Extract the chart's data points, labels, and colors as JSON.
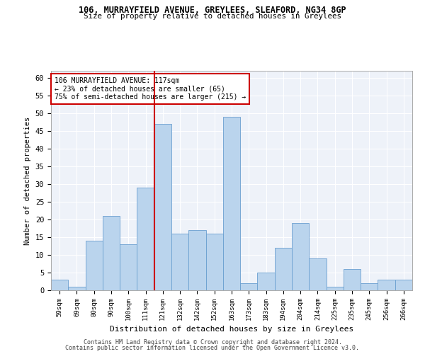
{
  "title1": "106, MURRAYFIELD AVENUE, GREYLEES, SLEAFORD, NG34 8GP",
  "title2": "Size of property relative to detached houses in Greylees",
  "xlabel": "Distribution of detached houses by size in Greylees",
  "ylabel": "Number of detached properties",
  "categories": [
    "59sqm",
    "69sqm",
    "80sqm",
    "90sqm",
    "100sqm",
    "111sqm",
    "121sqm",
    "132sqm",
    "142sqm",
    "152sqm",
    "163sqm",
    "173sqm",
    "183sqm",
    "194sqm",
    "204sqm",
    "214sqm",
    "225sqm",
    "235sqm",
    "245sqm",
    "256sqm",
    "266sqm"
  ],
  "values": [
    3,
    1,
    14,
    21,
    13,
    29,
    47,
    16,
    17,
    16,
    49,
    2,
    5,
    12,
    19,
    9,
    1,
    6,
    2,
    3,
    3
  ],
  "bar_color": "#bad4ed",
  "bar_edge_color": "#6a9fd0",
  "vline_color": "#cc0000",
  "annotation_text": "106 MURRAYFIELD AVENUE: 117sqm\n← 23% of detached houses are smaller (65)\n75% of semi-detached houses are larger (215) →",
  "annotation_box_color": "#cc0000",
  "ylim": [
    0,
    62
  ],
  "yticks": [
    0,
    5,
    10,
    15,
    20,
    25,
    30,
    35,
    40,
    45,
    50,
    55,
    60
  ],
  "bg_color": "#eef2f9",
  "footer1": "Contains HM Land Registry data © Crown copyright and database right 2024.",
  "footer2": "Contains public sector information licensed under the Open Government Licence v3.0."
}
